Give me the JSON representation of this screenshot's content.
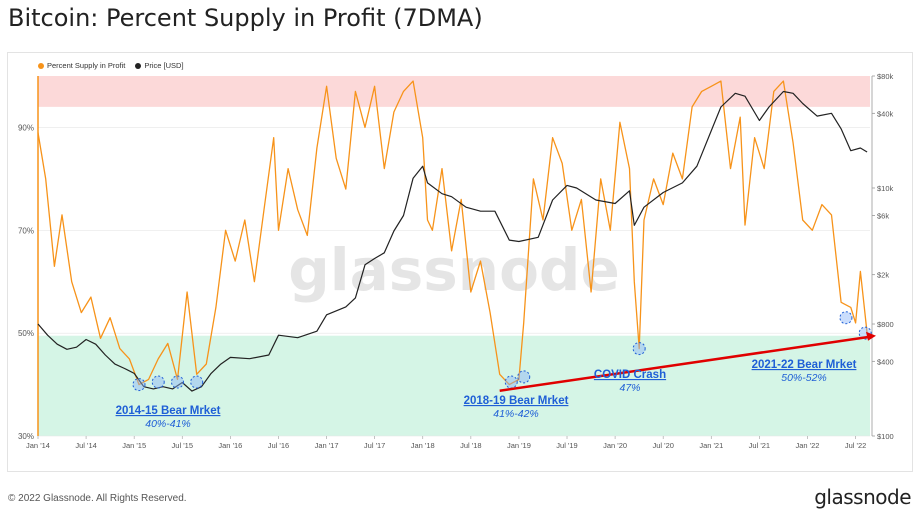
{
  "title": "Bitcoin: Percent Supply in Profit (7DMA)",
  "footer": "© 2022 Glassnode. All Rights Reserved.",
  "brand": "glassnode",
  "watermark": "glassnode",
  "colors": {
    "profit": "#f7931a",
    "price": "#222222",
    "red_zone": "#fcd9d9",
    "green_zone": "#d5f5e6",
    "annotation": "#1f5fd6",
    "trend": "#e00000"
  },
  "chart_data": {
    "type": "line",
    "x_ticks": [
      "Jan '14",
      "Jul '14",
      "Jan '15",
      "Jul '15",
      "Jan '16",
      "Jul '16",
      "Jan '17",
      "Jul '17",
      "Jan '18",
      "Jul '18",
      "Jan '19",
      "Jul '19",
      "Jan '20",
      "Jul '20",
      "Jan '21",
      "Jul '21",
      "Jan '22",
      "Jul '22"
    ],
    "y_left_ticks": [
      "30%",
      "50%",
      "70%",
      "90%"
    ],
    "y_left_range": [
      30,
      100
    ],
    "y_right_ticks": [
      "$100",
      "$400",
      "$800",
      "$2k",
      "$6k",
      "$10k",
      "$40k",
      "$80k"
    ],
    "y_right_range_log": [
      100,
      80000
    ],
    "bands": {
      "upper_pct": 94,
      "lower_pct": 49.5
    },
    "series": [
      {
        "name": "Percent Supply in Profit",
        "x": [
          2014.0,
          2014.08,
          2014.17,
          2014.25,
          2014.35,
          2014.45,
          2014.55,
          2014.65,
          2014.75,
          2014.85,
          2014.95,
          2015.05,
          2015.15,
          2015.25,
          2015.35,
          2015.45,
          2015.55,
          2015.65,
          2015.75,
          2015.85,
          2015.95,
          2016.05,
          2016.15,
          2016.25,
          2016.35,
          2016.45,
          2016.5,
          2016.6,
          2016.7,
          2016.8,
          2016.9,
          2017.0,
          2017.1,
          2017.2,
          2017.3,
          2017.4,
          2017.5,
          2017.6,
          2017.7,
          2017.8,
          2017.9,
          2018.0,
          2018.05,
          2018.1,
          2018.2,
          2018.3,
          2018.4,
          2018.5,
          2018.6,
          2018.7,
          2018.8,
          2018.9,
          2019.0,
          2019.05,
          2019.15,
          2019.25,
          2019.35,
          2019.45,
          2019.55,
          2019.65,
          2019.75,
          2019.85,
          2019.95,
          2020.05,
          2020.15,
          2020.2,
          2020.25,
          2020.3,
          2020.4,
          2020.5,
          2020.6,
          2020.7,
          2020.8,
          2020.9,
          2021.0,
          2021.1,
          2021.2,
          2021.3,
          2021.35,
          2021.45,
          2021.55,
          2021.65,
          2021.75,
          2021.85,
          2021.95,
          2022.05,
          2022.15,
          2022.25,
          2022.35,
          2022.45,
          2022.5,
          2022.55,
          2022.62
        ],
        "values": [
          89,
          80,
          63,
          73,
          60,
          54,
          57,
          49,
          53,
          47,
          45,
          40,
          41,
          45,
          48,
          41,
          58,
          42,
          44,
          55,
          70,
          64,
          72,
          60,
          74,
          88,
          70,
          82,
          74,
          69,
          86,
          98,
          84,
          78,
          97,
          90,
          98,
          82,
          93,
          97,
          99,
          88,
          72,
          70,
          82,
          66,
          76,
          58,
          64,
          54,
          42,
          40,
          41,
          52,
          80,
          72,
          88,
          83,
          70,
          76,
          58,
          80,
          70,
          91,
          82,
          60,
          47,
          72,
          80,
          75,
          85,
          80,
          94,
          97,
          98,
          99,
          82,
          92,
          71,
          88,
          82,
          97,
          99,
          87,
          72,
          70,
          75,
          73,
          56,
          55,
          52,
          62,
          50
        ]
      },
      {
        "name": "Price [USD]",
        "x": [
          2014.0,
          2014.1,
          2014.2,
          2014.3,
          2014.4,
          2014.5,
          2014.6,
          2014.7,
          2014.8,
          2014.9,
          2015.0,
          2015.1,
          2015.2,
          2015.3,
          2015.4,
          2015.5,
          2015.6,
          2015.7,
          2015.8,
          2015.9,
          2016.0,
          2016.2,
          2016.4,
          2016.5,
          2016.7,
          2016.9,
          2017.0,
          2017.2,
          2017.3,
          2017.4,
          2017.5,
          2017.6,
          2017.7,
          2017.8,
          2017.9,
          2018.0,
          2018.05,
          2018.2,
          2018.3,
          2018.45,
          2018.6,
          2018.75,
          2018.9,
          2019.0,
          2019.2,
          2019.35,
          2019.5,
          2019.6,
          2019.8,
          2020.0,
          2020.15,
          2020.2,
          2020.3,
          2020.5,
          2020.7,
          2020.85,
          2021.0,
          2021.1,
          2021.25,
          2021.35,
          2021.5,
          2021.6,
          2021.75,
          2021.85,
          2021.95,
          2022.1,
          2022.25,
          2022.35,
          2022.45,
          2022.55,
          2022.62
        ],
        "values": [
          800,
          650,
          550,
          500,
          520,
          600,
          550,
          450,
          380,
          350,
          320,
          250,
          240,
          250,
          240,
          270,
          230,
          250,
          320,
          380,
          430,
          420,
          450,
          650,
          620,
          700,
          950,
          1100,
          1300,
          2400,
          2700,
          3000,
          4500,
          6000,
          12000,
          15000,
          11000,
          9000,
          8500,
          7000,
          6500,
          6500,
          3800,
          3700,
          4000,
          8000,
          10500,
          10000,
          8000,
          7500,
          9500,
          5000,
          7000,
          9200,
          11000,
          15000,
          29000,
          45000,
          58000,
          55000,
          35000,
          45000,
          60000,
          58000,
          48000,
          38000,
          40000,
          30000,
          20000,
          21000,
          19500
        ]
      }
    ],
    "annotations": [
      {
        "title": "2014-15 Bear Mrket",
        "subtitle": "40%-41%"
      },
      {
        "title": "2018-19 Bear Mrket",
        "subtitle": "41%-42%"
      },
      {
        "title": "COVID Crash",
        "subtitle": "47%"
      },
      {
        "title": "2021-22 Bear Mrket",
        "subtitle": "50%-52%"
      }
    ]
  }
}
